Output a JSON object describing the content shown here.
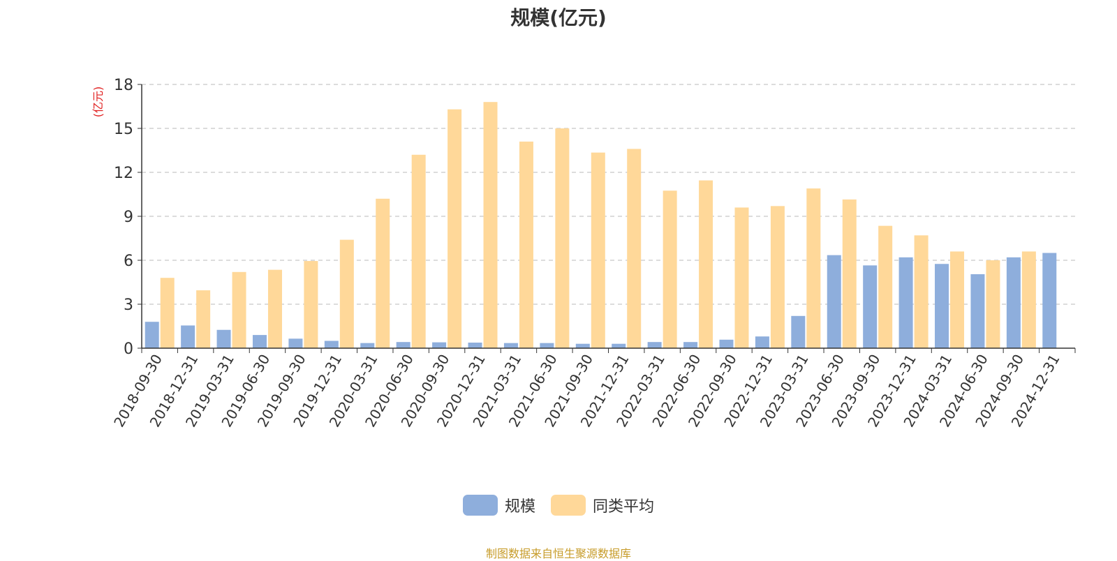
{
  "chart_data": {
    "type": "bar",
    "title": "规模(亿元)",
    "ylabel": "(亿元)",
    "xlabel": "",
    "ylim": [
      0,
      18
    ],
    "yticks": [
      0,
      3,
      6,
      9,
      12,
      15,
      18
    ],
    "grid": true,
    "legend_position": "bottom-center",
    "categories": [
      "2018-09-30",
      "2018-12-31",
      "2019-03-31",
      "2019-06-30",
      "2019-09-30",
      "2019-12-31",
      "2020-03-31",
      "2020-06-30",
      "2020-09-30",
      "2020-12-31",
      "2021-03-31",
      "2021-06-30",
      "2021-09-30",
      "2021-12-31",
      "2022-03-31",
      "2022-06-30",
      "2022-09-30",
      "2022-12-31",
      "2023-03-31",
      "2023-06-30",
      "2023-09-30",
      "2023-12-31",
      "2024-03-31",
      "2024-06-30",
      "2024-09-30",
      "2024-12-31"
    ],
    "series": [
      {
        "name": "规模",
        "color": "#8eaedc",
        "values": [
          1.8,
          1.55,
          1.25,
          0.9,
          0.65,
          0.5,
          0.35,
          0.42,
          0.4,
          0.38,
          0.35,
          0.35,
          0.3,
          0.3,
          0.42,
          0.42,
          0.58,
          0.8,
          2.2,
          6.35,
          5.65,
          6.2,
          5.75,
          5.05,
          6.2,
          6.5
        ]
      },
      {
        "name": "同类平均",
        "color": "#ffd899",
        "values": [
          4.8,
          3.95,
          5.2,
          5.35,
          5.95,
          7.4,
          10.2,
          13.2,
          16.3,
          16.8,
          14.1,
          15.0,
          13.35,
          13.6,
          10.75,
          11.45,
          9.6,
          9.7,
          10.9,
          10.15,
          8.35,
          7.7,
          6.6,
          6.0,
          6.6,
          null
        ]
      }
    ]
  },
  "footer": {
    "source_note": "制图数据来自恒生聚源数据库"
  }
}
